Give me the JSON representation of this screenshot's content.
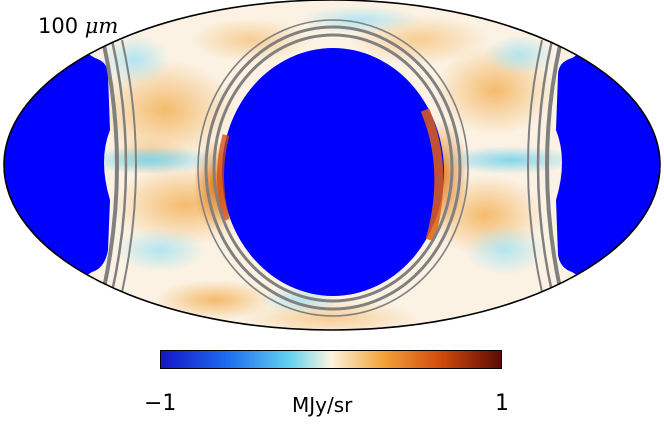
{
  "map": {
    "band_value": "100",
    "band_unit": "μm",
    "projection": "mollweide",
    "masked_color": "#0000ff",
    "trail_color": "#808080"
  },
  "colorbar": {
    "min_label": "−1",
    "max_label": "1",
    "unit_label": "MJy/sr",
    "range": [
      -1,
      1
    ],
    "stops": [
      "#1414c8",
      "#1e6ef0",
      "#64d2ee",
      "#fbf4e0",
      "#f2a43a",
      "#d24a0c",
      "#5a0a05"
    ]
  }
}
